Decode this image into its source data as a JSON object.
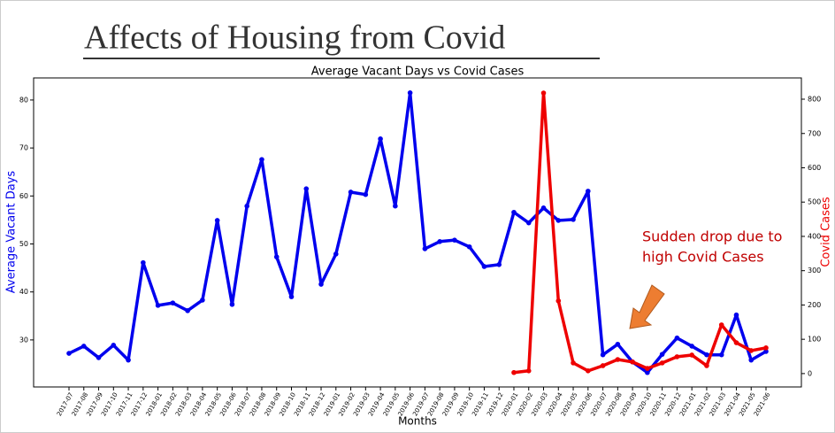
{
  "slide_title": "Affects of Housing from Covid",
  "chart_data": {
    "type": "line",
    "title": "Average Vacant Days vs Covid Cases",
    "x_label": "Months",
    "y_label": "Average Vacant Days",
    "y2_label": "Covid Cases",
    "annotation": [
      "Sudden drop due to",
      "high Covid Cases"
    ],
    "categories": [
      "2017-07",
      "2017-08",
      "2017-09",
      "2017-10",
      "2017-11",
      "2017-12",
      "2018-01",
      "2018-02",
      "2018-03",
      "2018-04",
      "2018-05",
      "2018-06",
      "2018-07",
      "2018-08",
      "2018-09",
      "2018-10",
      "2018-11",
      "2018-12",
      "2019-01",
      "2019-02",
      "2019-03",
      "2019-04",
      "2019-05",
      "2019-06",
      "2019-07",
      "2019-08",
      "2019-09",
      "2019-10",
      "2019-11",
      "2019-12",
      "2020-01",
      "2020-02",
      "2020-03",
      "2020-04",
      "2020-05",
      "2020-06",
      "2020-07",
      "2020-08",
      "2020-09",
      "2020-10",
      "2020-11",
      "2020-12",
      "2021-01",
      "2021-02",
      "2021-03",
      "2021-04",
      "2021-05",
      "2021-06"
    ],
    "series": [
      {
        "name": "Average Vacant Days",
        "color": "#0000ee",
        "values": [
          27.2,
          28.7,
          26.3,
          28.9,
          25.8,
          46.1,
          37.2,
          37.7,
          36.1,
          38.3,
          54.9,
          37.4,
          57.9,
          67.6,
          47.3,
          39.0,
          61.5,
          41.6,
          47.9,
          60.8,
          60.3,
          71.9,
          57.9,
          81.5,
          49.0,
          50.5,
          50.8,
          49.4,
          45.3,
          45.7,
          56.6,
          54.4,
          57.5,
          54.9,
          55.1,
          61.0,
          26.9,
          29.1,
          25.4,
          23.2,
          27.0,
          30.4,
          28.7,
          26.9,
          26.9,
          35.2,
          25.8,
          27.6
        ]
      },
      {
        "name": "Covid Cases",
        "color": "#ee0000",
        "axis": "y2",
        "values": [
          null,
          null,
          null,
          null,
          null,
          null,
          null,
          null,
          null,
          null,
          null,
          null,
          null,
          null,
          null,
          null,
          null,
          null,
          null,
          null,
          null,
          null,
          null,
          null,
          null,
          null,
          null,
          null,
          null,
          null,
          3,
          8,
          818,
          212,
          31,
          8,
          23,
          41,
          34,
          15,
          31,
          49,
          54,
          23,
          142,
          90,
          67,
          75
        ]
      }
    ],
    "ylim": [
      20.2,
      84.6
    ],
    "yticks": [
      30,
      40,
      50,
      60,
      70,
      80
    ],
    "y2lim": [
      -39,
      862
    ],
    "y2ticks": [
      0,
      100,
      200,
      300,
      400,
      500,
      600,
      700,
      800
    ],
    "grid": false
  }
}
